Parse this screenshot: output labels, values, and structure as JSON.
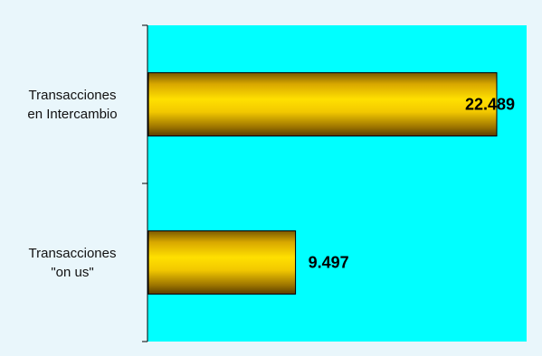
{
  "chart_data": {
    "type": "bar",
    "orientation": "horizontal",
    "categories": [
      [
        "Transacciones",
        "en Intercambio"
      ],
      [
        "Transacciones",
        "\"on us\""
      ]
    ],
    "values": [
      22489,
      9497
    ],
    "value_labels": [
      "22.489",
      "9.497"
    ],
    "xlim": [
      0,
      25000
    ],
    "grid": false,
    "legend": false
  },
  "colors": {
    "page_background": "#E9F6FB",
    "plot_background": "#00FFFF",
    "bar_light": "#FFE000",
    "bar_mid": "#E8B800",
    "bar_dark": "#6E4E00",
    "axis": "#000000"
  }
}
